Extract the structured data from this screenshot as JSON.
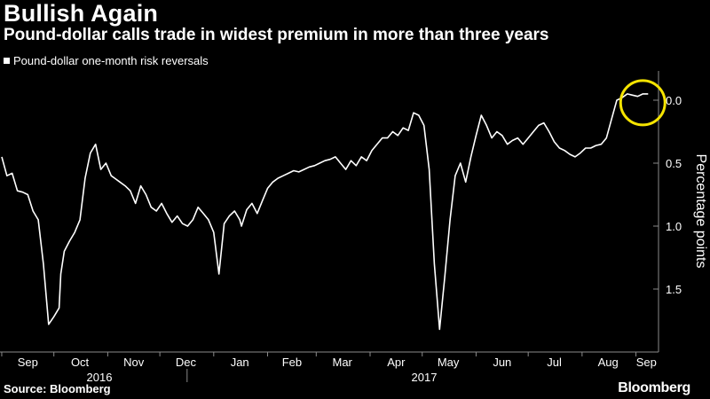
{
  "title": "Bullish Again",
  "subtitle": "Pound-dollar calls trade in widest premium in more than three years",
  "source": "Source: Bloomberg",
  "brand": "Bloomberg",
  "colors": {
    "background": "#000000",
    "line": "#ffffff",
    "highlight_circle": "#f5e400",
    "axis": "#8a8a8a"
  },
  "chart_data": {
    "type": "line",
    "title": "Bullish Again",
    "subtitle": "Pound-dollar calls trade in widest premium in more than three years",
    "ylabel": "Percentage points",
    "ylim": [
      -1.85,
      0.2
    ],
    "y_ticks": [
      0.0,
      -0.5,
      -1.0,
      -1.5
    ],
    "y_tick_labels": [
      "0.0",
      "0.5",
      "1.0",
      "1.5"
    ],
    "x_tick_labels": [
      "Sep",
      "Oct",
      "Nov",
      "Dec",
      "Jan",
      "Feb",
      "Mar",
      "Apr",
      "May",
      "Jun",
      "Jul",
      "Aug",
      "Sep"
    ],
    "year_labels": [
      "2016",
      "2017"
    ],
    "legend_position": "top-left",
    "annotation": "yellow circle marking latest value",
    "series": [
      {
        "name": "Pound-dollar one-month risk reversals",
        "x": [
          "2016-09-01",
          "2016-09-04",
          "2016-09-07",
          "2016-09-10",
          "2016-09-13",
          "2016-09-16",
          "2016-09-19",
          "2016-09-22",
          "2016-09-25",
          "2016-09-28",
          "2016-10-01",
          "2016-10-04",
          "2016-10-05",
          "2016-10-07",
          "2016-10-10",
          "2016-10-13",
          "2016-10-16",
          "2016-10-19",
          "2016-10-22",
          "2016-10-25",
          "2016-10-28",
          "2016-10-31",
          "2016-11-03",
          "2016-11-05",
          "2016-11-08",
          "2016-11-11",
          "2016-11-14",
          "2016-11-17",
          "2016-11-20",
          "2016-11-23",
          "2016-11-26",
          "2016-11-29",
          "2016-12-02",
          "2016-12-05",
          "2016-12-08",
          "2016-12-11",
          "2016-12-14",
          "2016-12-17",
          "2016-12-20",
          "2016-12-23",
          "2016-12-26",
          "2016-12-29",
          "2017-01-01",
          "2017-01-04",
          "2017-01-07",
          "2017-01-10",
          "2017-01-13",
          "2017-01-16",
          "2017-01-17",
          "2017-01-20",
          "2017-01-23",
          "2017-01-26",
          "2017-01-29",
          "2017-02-01",
          "2017-02-04",
          "2017-02-07",
          "2017-02-10",
          "2017-02-13",
          "2017-02-16",
          "2017-02-19",
          "2017-02-22",
          "2017-02-25",
          "2017-02-28",
          "2017-03-03",
          "2017-03-06",
          "2017-03-09",
          "2017-03-12",
          "2017-03-15",
          "2017-03-18",
          "2017-03-21",
          "2017-03-24",
          "2017-03-27",
          "2017-03-30",
          "2017-04-02",
          "2017-04-05",
          "2017-04-08",
          "2017-04-11",
          "2017-04-14",
          "2017-04-17",
          "2017-04-20",
          "2017-04-23",
          "2017-04-26",
          "2017-04-29",
          "2017-05-02",
          "2017-05-05",
          "2017-05-08",
          "2017-05-11",
          "2017-05-14",
          "2017-05-17",
          "2017-05-20",
          "2017-05-23",
          "2017-05-26",
          "2017-05-29",
          "2017-06-01",
          "2017-06-04",
          "2017-06-07",
          "2017-06-10",
          "2017-06-13",
          "2017-06-16",
          "2017-06-19",
          "2017-06-22",
          "2017-06-25",
          "2017-06-28",
          "2017-07-01",
          "2017-07-04",
          "2017-07-07",
          "2017-07-10",
          "2017-07-13",
          "2017-07-16",
          "2017-07-19",
          "2017-07-22",
          "2017-07-25",
          "2017-07-28",
          "2017-07-31",
          "2017-08-03",
          "2017-08-06",
          "2017-08-09",
          "2017-08-12",
          "2017-08-15",
          "2017-08-18",
          "2017-08-21",
          "2017-08-24",
          "2017-08-27",
          "2017-08-30",
          "2017-09-02",
          "2017-09-05",
          "2017-09-08"
        ],
        "y": [
          -0.45,
          -0.6,
          -0.58,
          -0.72,
          -0.73,
          -0.75,
          -0.88,
          -0.95,
          -1.3,
          -1.78,
          -1.72,
          -1.65,
          -1.38,
          -1.2,
          -1.12,
          -1.05,
          -0.95,
          -0.62,
          -0.42,
          -0.35,
          -0.55,
          -0.5,
          -0.6,
          -0.62,
          -0.65,
          -0.68,
          -0.72,
          -0.82,
          -0.68,
          -0.75,
          -0.85,
          -0.88,
          -0.82,
          -0.9,
          -0.97,
          -0.92,
          -0.98,
          -1.0,
          -0.95,
          -0.85,
          -0.9,
          -0.95,
          -1.05,
          -1.38,
          -0.98,
          -0.92,
          -0.88,
          -0.95,
          -1.0,
          -0.87,
          -0.82,
          -0.9,
          -0.8,
          -0.7,
          -0.65,
          -0.62,
          -0.6,
          -0.58,
          -0.56,
          -0.57,
          -0.55,
          -0.53,
          -0.52,
          -0.5,
          -0.48,
          -0.47,
          -0.45,
          -0.5,
          -0.55,
          -0.48,
          -0.52,
          -0.45,
          -0.48,
          -0.4,
          -0.35,
          -0.3,
          -0.3,
          -0.25,
          -0.28,
          -0.22,
          -0.24,
          -0.1,
          -0.12,
          -0.2,
          -0.55,
          -1.3,
          -1.82,
          -1.4,
          -0.95,
          -0.6,
          -0.5,
          -0.65,
          -0.45,
          -0.28,
          -0.12,
          -0.2,
          -0.3,
          -0.25,
          -0.28,
          -0.35,
          -0.32,
          -0.3,
          -0.35,
          -0.3,
          -0.25,
          -0.2,
          -0.18,
          -0.25,
          -0.33,
          -0.38,
          -0.4,
          -0.43,
          -0.45,
          -0.42,
          -0.38,
          -0.38,
          -0.36,
          -0.35,
          -0.3,
          -0.15,
          0.0,
          0.02,
          0.05,
          0.04,
          0.03,
          0.05,
          0.05
        ]
      }
    ]
  }
}
